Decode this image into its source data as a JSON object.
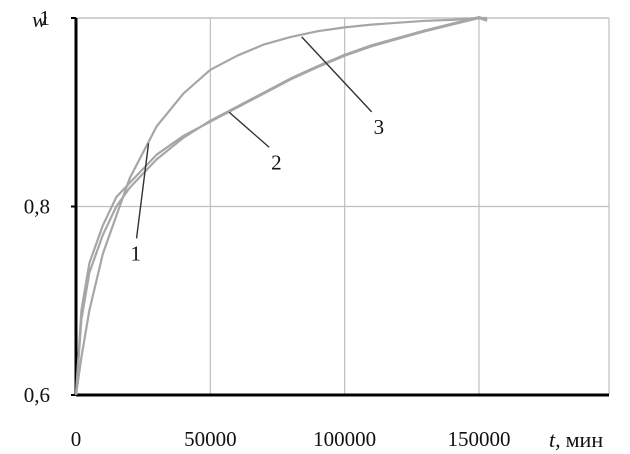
{
  "chart_data": {
    "type": "line",
    "ylabel": "w",
    "xlabel_var": "t,",
    "xlabel_unit": "мин",
    "xlim": [
      0,
      150000
    ],
    "ylim": [
      0.6,
      1.0
    ],
    "x_ticks": [
      "0",
      "50000",
      "100000",
      "150000"
    ],
    "y_ticks": [
      "0,6",
      "0,8",
      "1"
    ],
    "grid": true,
    "colors": {
      "curves": "#a6a6a6",
      "grid": "#bfbfbf",
      "axes": "#000000",
      "leader": "#333333"
    },
    "series": [
      {
        "name": "1",
        "x": [
          0,
          2000,
          5000,
          10000,
          15000,
          20000,
          30000,
          40000,
          50000,
          60000,
          70000,
          80000,
          90000,
          100000,
          110000,
          120000,
          130000,
          140000,
          150000,
          153000
        ],
        "y": [
          0.6,
          0.69,
          0.74,
          0.78,
          0.81,
          0.825,
          0.855,
          0.875,
          0.89,
          0.905,
          0.92,
          0.935,
          0.948,
          0.96,
          0.97,
          0.978,
          0.986,
          0.993,
          1.0,
          0.997
        ]
      },
      {
        "name": "2",
        "x": [
          0,
          2000,
          5000,
          10000,
          15000,
          20000,
          30000,
          40000,
          50000,
          60000,
          70000,
          80000,
          90000,
          100000,
          110000,
          120000,
          130000,
          140000,
          150000,
          153000
        ],
        "y": [
          0.6,
          0.68,
          0.73,
          0.77,
          0.8,
          0.82,
          0.85,
          0.873,
          0.891,
          0.906,
          0.921,
          0.936,
          0.949,
          0.961,
          0.971,
          0.979,
          0.987,
          0.994,
          1.001,
          0.998
        ]
      },
      {
        "name": "3",
        "x": [
          0,
          2000,
          5000,
          10000,
          15000,
          20000,
          30000,
          40000,
          50000,
          60000,
          70000,
          80000,
          90000,
          100000,
          110000,
          120000,
          130000,
          140000,
          150000,
          153000
        ],
        "y": [
          0.6,
          0.64,
          0.69,
          0.75,
          0.79,
          0.83,
          0.885,
          0.92,
          0.945,
          0.96,
          0.972,
          0.98,
          0.986,
          0.99,
          0.993,
          0.995,
          0.997,
          0.998,
          1.0,
          1.0
        ]
      }
    ],
    "annotations": [
      {
        "text": "1",
        "x": 27000,
        "y": 0.867
      },
      {
        "text": "2",
        "x": 57000,
        "y": 0.9
      },
      {
        "text": "3",
        "x": 84000,
        "y": 0.98
      }
    ]
  }
}
